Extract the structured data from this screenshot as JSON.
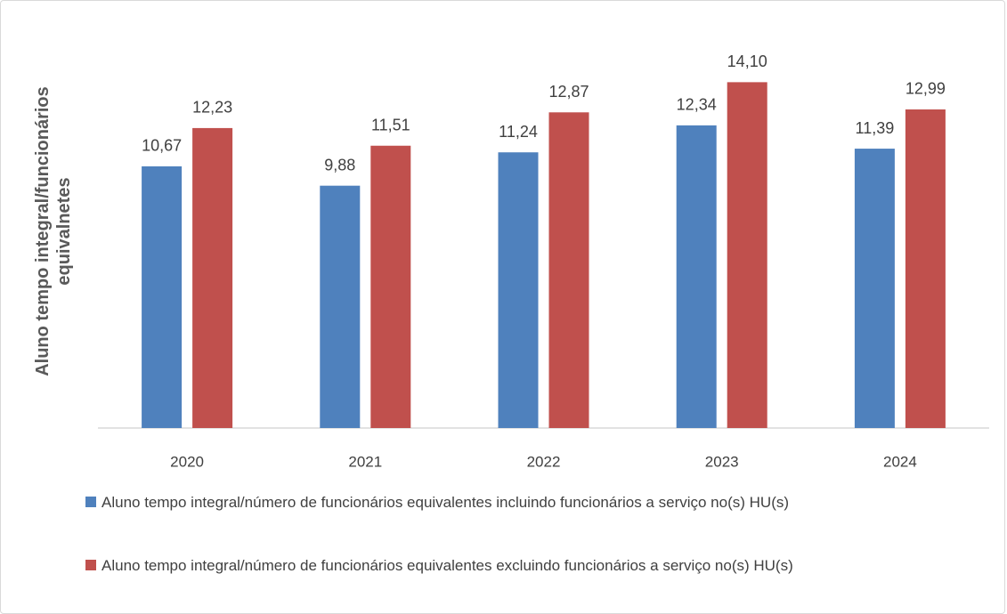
{
  "chart_data": {
    "type": "bar",
    "y_label": "Aluno tempo integral/funcionários equivalnetes",
    "categories": [
      "2020",
      "2021",
      "2022",
      "2023",
      "2024"
    ],
    "series": [
      {
        "name": "Aluno tempo integral/número de funcionários equivalentes incluindo funcionários a serviço no(s) HU(s)",
        "color": "#4f81bd",
        "values": [
          10.67,
          9.88,
          11.24,
          12.34,
          11.39
        ],
        "value_labels": [
          "10,67",
          "9,88",
          "11,24",
          "12,34",
          "11,39"
        ]
      },
      {
        "name": "Aluno tempo integral/número de funcionários equivalentes excluindo funcionários a serviço no(s) HU(s)",
        "color": "#c0504d",
        "values": [
          12.23,
          11.51,
          12.87,
          14.1,
          12.99
        ],
        "value_labels": [
          "12,23",
          "11,51",
          "12,87",
          "14,10",
          "12,99"
        ]
      }
    ],
    "ylim": [
      0,
      16
    ],
    "legend": "bottom"
  }
}
